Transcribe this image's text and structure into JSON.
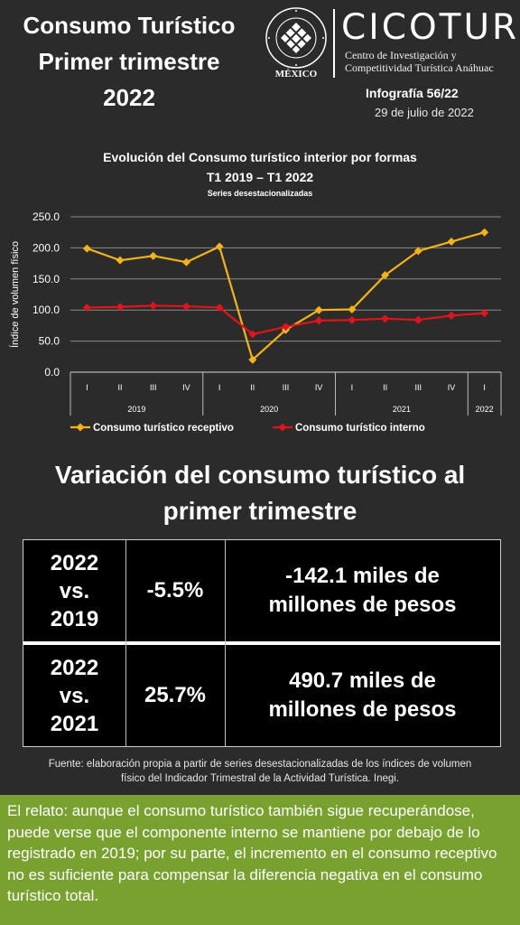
{
  "header": {
    "title_lines": [
      "Consumo Turístico",
      "Primer trimestre",
      "2022"
    ],
    "seal_country": "MÉXICO",
    "seal_ring_text": "UNIVERSIDAD ANÁHUAC · VINCE IN BONO MALUM",
    "brand": "CICOTUR",
    "brand_sub_lines": [
      "Centro de Investigación y",
      "Competitividad Turística Anáhuac"
    ],
    "infografia": "Infografía 56/22",
    "date": "29 de julio de 2022"
  },
  "chart_data": {
    "type": "line",
    "title": "Evolución del Consumo turístico interior por formas",
    "subtitle": "T1 2019 – T1 2022",
    "note": "Series desestacionalizadas",
    "ylabel": "Índice de volumen físico",
    "ylim": [
      0,
      250
    ],
    "yticks": [
      "0.0",
      "50.0",
      "100.0",
      "150.0",
      "200.0",
      "250.0"
    ],
    "quarters": [
      "I",
      "II",
      "III",
      "IV",
      "I",
      "II",
      "III",
      "IV",
      "I",
      "II",
      "III",
      "IV",
      "I"
    ],
    "years": [
      {
        "label": "2019",
        "count": 4
      },
      {
        "label": "2020",
        "count": 4
      },
      {
        "label": "2021",
        "count": 4
      },
      {
        "label": "2022",
        "count": 1
      }
    ],
    "grid": true,
    "legend_position": "bottom",
    "series": [
      {
        "name": "Consumo turístico receptivo",
        "color": "#f5b31a",
        "marker": "diamond",
        "values": [
          199,
          180,
          187,
          177,
          202,
          20,
          68,
          100,
          101,
          156,
          195,
          210,
          225
        ]
      },
      {
        "name": "Consumo turístico interno",
        "color": "#e0141a",
        "marker": "diamond",
        "values": [
          104,
          105,
          107,
          106,
          104,
          61,
          73,
          83,
          84,
          86,
          84,
          91,
          95
        ]
      }
    ]
  },
  "section": {
    "title_lines": [
      "Variación del consumo turístico al",
      "primer trimestre"
    ]
  },
  "table": {
    "rows": [
      {
        "comparison": [
          "2022",
          "vs.",
          "2019"
        ],
        "percent": "-5.5%",
        "amount": [
          "-142.1 miles de",
          "millones de pesos"
        ]
      },
      {
        "comparison": [
          "2022",
          "vs.",
          "2021"
        ],
        "percent": "25.7%",
        "amount": [
          "490.7 miles de",
          "millones de pesos"
        ]
      }
    ]
  },
  "source_lines": [
    "Fuente: elaboración propia a partir de series desestacionalizadas de los índices de volumen",
    "físico del Indicador Trimestral de la Actividad Turística. Inegi."
  ],
  "story": "El relato: aunque el consumo turístico también sigue recuperándose, puede verse que el componente interno se mantiene por debajo de lo registrado en 2019; por su parte, el incremento en el consumo receptivo no es suficiente para compensar la diferencia negativa en el consumo turístico total.",
  "colors": {
    "background": "#2b2b2b",
    "story_bg": "#79a12f",
    "table_bg": "#000000"
  }
}
